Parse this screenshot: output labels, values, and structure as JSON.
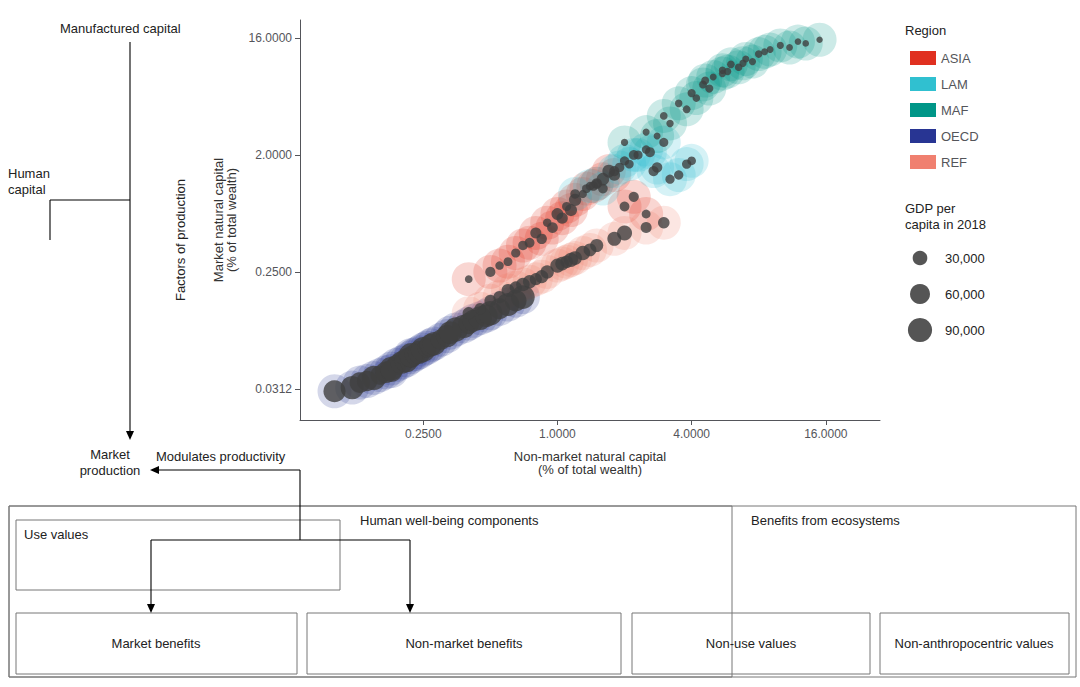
{
  "chart_data": {
    "type": "scatter",
    "log": true,
    "grid": false,
    "legend": "right",
    "xlabel": "Non-market natural capital\n(% of total wealth)",
    "ylabel": "Market natural capital\n(% of total wealth)",
    "xlim": [
      0.07,
      28.0
    ],
    "ylim": [
      0.018,
      22.0
    ],
    "xticks": [
      {
        "value": 0.25,
        "label": "0.2500"
      },
      {
        "value": 1.0,
        "label": "1.0000"
      },
      {
        "value": 4.0,
        "label": "4.0000"
      },
      {
        "value": 16.0,
        "label": "16.0000"
      }
    ],
    "yticks": [
      0.0312,
      {
        "value": 0.25,
        "label": "0.2500"
      },
      {
        "value": 2.0,
        "label": "2.0000"
      },
      {
        "value": 16.0,
        "label": "16.0000"
      }
    ],
    "color": "#404040",
    "series": [
      {
        "name": "ASIA",
        "color": "#E03020",
        "x": [
          0.5,
          0.6,
          0.7,
          0.8,
          0.9,
          1.0,
          1.1,
          1.2,
          1.3,
          1.5,
          1.7,
          2.0,
          0.65,
          0.85,
          1.05,
          1.35,
          0.55,
          0.75,
          0.95,
          1.15,
          1.45,
          1.8,
          2.2,
          0.4,
          1.6,
          2.5
        ],
        "y": [
          0.25,
          0.3,
          0.4,
          0.5,
          0.6,
          0.7,
          0.8,
          0.9,
          1.0,
          1.2,
          1.5,
          0.8,
          0.35,
          0.45,
          0.65,
          1.1,
          0.28,
          0.42,
          0.55,
          0.75,
          1.15,
          1.4,
          0.95,
          0.22,
          1.3,
          0.7
        ],
        "gdp": [
          12000,
          8000,
          10000,
          15000,
          7000,
          18000,
          9000,
          20000,
          6000,
          14000,
          22000,
          11000,
          9000,
          13000,
          16000,
          8000,
          7000,
          11000,
          14000,
          19000,
          10000,
          17000,
          12000,
          5000,
          21000,
          8000
        ]
      },
      {
        "name": "LAM",
        "color": "#30C0D0",
        "x": [
          1.2,
          1.5,
          1.8,
          2.0,
          2.2,
          2.5,
          2.8,
          3.0,
          3.5,
          4.0,
          1.6,
          2.1,
          2.6,
          3.2,
          1.4,
          1.9,
          2.3,
          2.7,
          3.8
        ],
        "y": [
          1.0,
          1.2,
          1.5,
          1.8,
          2.0,
          2.2,
          1.6,
          2.5,
          1.4,
          1.8,
          1.1,
          1.7,
          2.1,
          1.3,
          1.15,
          1.6,
          2.0,
          1.5,
          1.7
        ],
        "gdp": [
          10000,
          8000,
          12000,
          9000,
          11000,
          7000,
          13000,
          8500,
          9500,
          7500,
          10500,
          8000,
          11500,
          9000,
          7000,
          10000,
          8500,
          12000,
          9500
        ]
      },
      {
        "name": "MAF",
        "color": "#009688",
        "x": [
          2.0,
          2.5,
          3.0,
          3.5,
          4.0,
          4.5,
          5.0,
          5.5,
          6.0,
          7.0,
          8.0,
          9.0,
          10.0,
          12.0,
          3.2,
          3.8,
          4.2,
          4.8,
          5.5,
          6.5,
          7.5,
          2.8,
          4.6,
          5.8,
          6.8,
          8.5,
          11.0,
          13.0,
          15.0
        ],
        "y": [
          2.5,
          3.0,
          4.0,
          5.0,
          6.0,
          7.0,
          8.0,
          9.0,
          10.0,
          11.0,
          12.0,
          13.0,
          14.0,
          15.0,
          3.5,
          4.5,
          5.5,
          6.5,
          8.5,
          9.5,
          10.5,
          2.8,
          7.5,
          8.8,
          10.2,
          12.5,
          13.5,
          14.5,
          15.5
        ],
        "gdp": [
          4000,
          3500,
          5000,
          4500,
          6000,
          5500,
          3000,
          4000,
          5000,
          3500,
          4500,
          3000,
          3500,
          2500,
          4200,
          5200,
          4800,
          5800,
          3800,
          4800,
          3800,
          3200,
          5500,
          4200,
          3800,
          3200,
          2800,
          2500,
          2000
        ]
      },
      {
        "name": "OECD",
        "color": "#283593",
        "x": [
          0.1,
          0.12,
          0.13,
          0.15,
          0.16,
          0.17,
          0.18,
          0.19,
          0.2,
          0.21,
          0.22,
          0.23,
          0.24,
          0.25,
          0.26,
          0.27,
          0.28,
          0.3,
          0.32,
          0.35,
          0.38,
          0.4,
          0.42,
          0.45,
          0.48,
          0.5,
          0.55,
          0.6,
          0.65,
          0.7,
          0.18,
          0.22,
          0.14,
          0.33
        ],
        "y": [
          0.03,
          0.032,
          0.035,
          0.038,
          0.04,
          0.042,
          0.045,
          0.048,
          0.05,
          0.052,
          0.055,
          0.058,
          0.06,
          0.063,
          0.065,
          0.068,
          0.07,
          0.075,
          0.08,
          0.09,
          0.095,
          0.1,
          0.105,
          0.11,
          0.115,
          0.12,
          0.13,
          0.14,
          0.15,
          0.16,
          0.043,
          0.057,
          0.036,
          0.085
        ],
        "gdp": [
          75000,
          82000,
          65000,
          90000,
          55000,
          70000,
          85000,
          60000,
          78000,
          88000,
          72000,
          68000,
          80000,
          95000,
          58000,
          76000,
          83000,
          62000,
          77000,
          91000,
          84000,
          69000,
          73000,
          87000,
          79000,
          92000,
          66000,
          81000,
          71000,
          86000,
          74000,
          89000,
          63000,
          78000
        ]
      },
      {
        "name": "REF",
        "color": "#F08070",
        "x": [
          0.4,
          0.5,
          0.6,
          0.7,
          0.8,
          0.9,
          1.0,
          1.1,
          1.2,
          1.3,
          1.5,
          1.8,
          2.0,
          2.5,
          3.0,
          0.55,
          0.75,
          1.05,
          1.4,
          0.65,
          0.85,
          1.15,
          0.45
        ],
        "y": [
          0.12,
          0.15,
          0.18,
          0.2,
          0.22,
          0.25,
          0.28,
          0.3,
          0.32,
          0.35,
          0.4,
          0.45,
          0.5,
          0.55,
          0.6,
          0.16,
          0.21,
          0.29,
          0.37,
          0.19,
          0.23,
          0.31,
          0.13
        ],
        "gdp": [
          20000,
          18000,
          22000,
          25000,
          19000,
          24000,
          28000,
          21000,
          26000,
          30000,
          23000,
          27000,
          32000,
          15000,
          17000,
          20000,
          24000,
          26000,
          22000,
          19000,
          23000,
          28000,
          16000
        ]
      }
    ],
    "gdp_legend": [
      {
        "value": 30000,
        "label": "30,000"
      },
      {
        "value": 60000,
        "label": "60,000"
      },
      {
        "value": 90000,
        "label": "90,000"
      }
    ],
    "annotations": {
      "region_legend_title": "Region",
      "gdp_legend_title": "GDP per\ncapita in 2018",
      "manufactured_capital": "Manufactured capital",
      "human_capital": "Human\ncapital",
      "factors_of_production": "Factors of production",
      "market_production": "Market\nproduction",
      "modulates_productivity": "Modulates productivity",
      "benefits_from_ecosystems": "Benefits from ecosystems",
      "human_wellbeing": "Human well-being components",
      "use_values": "Use values",
      "market_benefits": "Market benefits",
      "non_market_benefits": "Non-market benefits",
      "non_use_values": "Non-use values",
      "non_anthropocentric": "Non-anthropocentric values"
    }
  }
}
